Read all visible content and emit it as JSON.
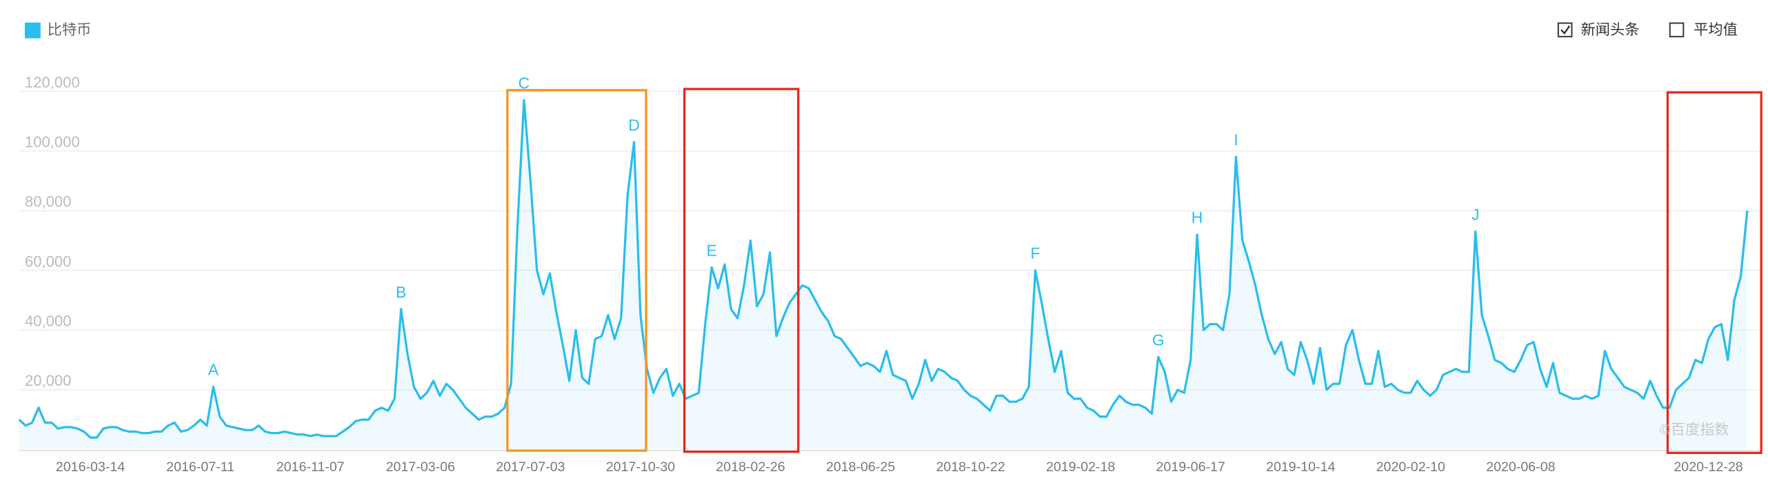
{
  "chart_data": {
    "type": "line",
    "legend": {
      "series_label": "比特币",
      "options": [
        {
          "label": "新闻头条",
          "checked": true
        },
        {
          "label": "平均值",
          "checked": false
        }
      ]
    },
    "watermark": "©百度指数",
    "color": "#2bbdeb",
    "grid": true,
    "ylim": [
      0,
      120000
    ],
    "yticks": [
      {
        "value": 20000,
        "label": "20,000"
      },
      {
        "value": 40000,
        "label": "40,000"
      },
      {
        "value": 60000,
        "label": "60,000"
      },
      {
        "value": 80000,
        "label": "80,000"
      },
      {
        "value": 100000,
        "label": "100,000"
      },
      {
        "value": 120000,
        "label": "120,000"
      }
    ],
    "categories": [
      null,
      null,
      null,
      null,
      null,
      null,
      null,
      null,
      null,
      null,
      null,
      "2016-03-14",
      null,
      null,
      null,
      null,
      null,
      null,
      null,
      null,
      null,
      null,
      null,
      null,
      null,
      null,
      null,
      null,
      "2016-07-11",
      null,
      null,
      null,
      null,
      null,
      null,
      null,
      null,
      null,
      null,
      null,
      null,
      null,
      null,
      null,
      null,
      "2016-11-07",
      null,
      null,
      null,
      null,
      null,
      null,
      null,
      null,
      null,
      null,
      null,
      null,
      null,
      null,
      null,
      null,
      "2017-03-06",
      null,
      null,
      null,
      null,
      null,
      null,
      null,
      null,
      null,
      null,
      null,
      null,
      null,
      null,
      null,
      null,
      "2017-07-03",
      null,
      null,
      null,
      null,
      null,
      null,
      null,
      null,
      null,
      null,
      null,
      null,
      null,
      null,
      null,
      null,
      "2017-10-30",
      null,
      null,
      null,
      null,
      null,
      null,
      null,
      null,
      null,
      null,
      null,
      null,
      null,
      null,
      null,
      null,
      "2018-02-26",
      null,
      null,
      null,
      null,
      null,
      null,
      null,
      null,
      null,
      null,
      null,
      null,
      null,
      null,
      null,
      null,
      "2018-06-25",
      null,
      null,
      null,
      null,
      null,
      null,
      null,
      null,
      null,
      null,
      null,
      null,
      null,
      null,
      null,
      null,
      "2018-10-22",
      null,
      null,
      null,
      null,
      null,
      null,
      null,
      null,
      null,
      null,
      null,
      null,
      null,
      null,
      null,
      null,
      "2019-02-18",
      null,
      null,
      null,
      null,
      null,
      null,
      null,
      null,
      null,
      null,
      null,
      null,
      null,
      null,
      null,
      null,
      "2019-06-17",
      null,
      null,
      null,
      null,
      null,
      null,
      null,
      null,
      null,
      null,
      null,
      null,
      null,
      null,
      null,
      null,
      "2019-10-14",
      null,
      null,
      null,
      null,
      null,
      null,
      null,
      null,
      null,
      null,
      null,
      null,
      null,
      null,
      null,
      null,
      "2020-02-10",
      null,
      null,
      null,
      null,
      null,
      null,
      null,
      null,
      null,
      null,
      null,
      null,
      null,
      null,
      null,
      null,
      "2020-06-08",
      null,
      null,
      null,
      null,
      null,
      null,
      null,
      null,
      null,
      null,
      null,
      null,
      null,
      null,
      null,
      null,
      null,
      null,
      null,
      null,
      null,
      null,
      null,
      null,
      null,
      null,
      null,
      null,
      "2020-12-28",
      null,
      null,
      null,
      null,
      null,
      null
    ],
    "point_labels": [
      null,
      null,
      null,
      null,
      null,
      null,
      null,
      null,
      null,
      null,
      null,
      null,
      null,
      null,
      null,
      null,
      null,
      null,
      null,
      null,
      null,
      null,
      null,
      null,
      null,
      null,
      null,
      null,
      null,
      null,
      "A",
      null,
      null,
      null,
      null,
      null,
      null,
      null,
      null,
      null,
      null,
      null,
      null,
      null,
      null,
      null,
      null,
      null,
      null,
      null,
      null,
      null,
      null,
      null,
      null,
      null,
      null,
      null,
      null,
      "B",
      null,
      null,
      null,
      null,
      null,
      null,
      null,
      null,
      null,
      null,
      null,
      null,
      null,
      null,
      null,
      null,
      null,
      null,
      "C",
      null,
      null,
      null,
      null,
      null,
      null,
      null,
      null,
      null,
      null,
      null,
      null,
      null,
      null,
      null,
      null,
      "D",
      null,
      null,
      null,
      null,
      null,
      null,
      null,
      null,
      null,
      null,
      null,
      "E",
      null,
      null,
      null,
      null,
      null,
      null,
      null,
      null,
      null,
      null,
      null,
      null,
      null,
      null,
      null,
      null,
      null,
      null,
      null,
      null,
      null,
      null,
      null,
      null,
      null,
      null,
      null,
      null,
      null,
      null,
      null,
      null,
      null,
      null,
      null,
      null,
      null,
      null,
      null,
      null,
      null,
      null,
      null,
      null,
      null,
      null,
      null,
      null,
      null,
      "F",
      null,
      null,
      null,
      null,
      null,
      null,
      null,
      null,
      null,
      null,
      null,
      null,
      null,
      null,
      null,
      null,
      null,
      null,
      "G",
      null,
      null,
      null,
      null,
      null,
      "H",
      null,
      null,
      null,
      null,
      null,
      "I",
      null,
      null,
      null,
      null,
      null,
      null,
      null,
      null,
      null,
      null,
      null,
      null,
      null,
      null,
      null,
      null,
      null,
      null,
      null,
      null,
      null,
      null,
      null,
      null,
      null,
      null,
      null,
      null,
      null,
      null,
      null,
      null,
      null,
      null,
      null,
      null,
      "J",
      null,
      null,
      null,
      null,
      null,
      null,
      null,
      null,
      null,
      null,
      null,
      null,
      null,
      null,
      null,
      null,
      null,
      null,
      null,
      null,
      null,
      null,
      null,
      null,
      null,
      null,
      null,
      null,
      null,
      null,
      null,
      null,
      null,
      null,
      null,
      null,
      null,
      null,
      null,
      null,
      null,
      null
    ],
    "values": [
      10000,
      8000,
      9000,
      14000,
      9000,
      9000,
      7000,
      7500,
      7500,
      7000,
      6000,
      4000,
      4000,
      7000,
      7500,
      7500,
      6500,
      6000,
      6000,
      5500,
      5500,
      6000,
      6000,
      8000,
      9000,
      6000,
      6500,
      8000,
      10000,
      8000,
      21000,
      11000,
      8000,
      7500,
      7000,
      6500,
      6500,
      8000,
      6000,
      5500,
      5500,
      6000,
      5500,
      5000,
      5000,
      4500,
      5000,
      4500,
      4500,
      4500,
      6000,
      7500,
      9500,
      10000,
      10000,
      13000,
      14000,
      13000,
      17000,
      47000,
      32000,
      21000,
      17000,
      19000,
      23000,
      18000,
      22000,
      20000,
      17000,
      14000,
      12000,
      10000,
      11000,
      11000,
      12000,
      14000,
      22000,
      75000,
      117000,
      90000,
      60000,
      52000,
      59000,
      46000,
      35000,
      23000,
      40000,
      24000,
      22000,
      37000,
      38000,
      45000,
      37000,
      44000,
      85000,
      103000,
      45000,
      27000,
      19000,
      24000,
      27000,
      18000,
      22000,
      17000,
      18000,
      19000,
      42000,
      61000,
      54000,
      62000,
      47000,
      44000,
      55000,
      70000,
      48000,
      52000,
      66000,
      38000,
      44000,
      49000,
      52000,
      55000,
      54000,
      50000,
      46000,
      43000,
      38000,
      37000,
      34000,
      31000,
      28000,
      29000,
      28000,
      26000,
      33000,
      25000,
      24000,
      23000,
      17000,
      22000,
      30000,
      23000,
      27000,
      26000,
      24000,
      23000,
      20000,
      18000,
      17000,
      15000,
      13000,
      18000,
      18000,
      16000,
      16000,
      17000,
      21000,
      60000,
      49000,
      37000,
      26000,
      33000,
      19000,
      17000,
      17000,
      14000,
      13000,
      11000,
      11000,
      15000,
      18000,
      16000,
      15000,
      15000,
      14000,
      12000,
      31000,
      26000,
      16000,
      20000,
      19000,
      30000,
      72000,
      40000,
      42000,
      42000,
      40000,
      52000,
      98000,
      70000,
      63000,
      55000,
      45000,
      37000,
      32000,
      36000,
      27000,
      25000,
      36000,
      30000,
      22000,
      34000,
      20000,
      22000,
      22000,
      35000,
      40000,
      30000,
      22000,
      22000,
      33000,
      21000,
      22000,
      20000,
      19000,
      19000,
      23000,
      20000,
      18000,
      20000,
      25000,
      26000,
      27000,
      26000,
      26000,
      73000,
      45000,
      38000,
      30000,
      29000,
      27000,
      26000,
      30000,
      35000,
      36000,
      27000,
      21000,
      29000,
      19000,
      18000,
      17000,
      17000,
      18000,
      17000,
      18000,
      33000,
      27000,
      24000,
      21000,
      20000,
      19000,
      17000,
      23000,
      18000,
      14000,
      14000,
      20000,
      22000,
      24000,
      30000,
      29000,
      37000,
      41000,
      42000,
      30000,
      50000,
      58000,
      80000
    ]
  }
}
